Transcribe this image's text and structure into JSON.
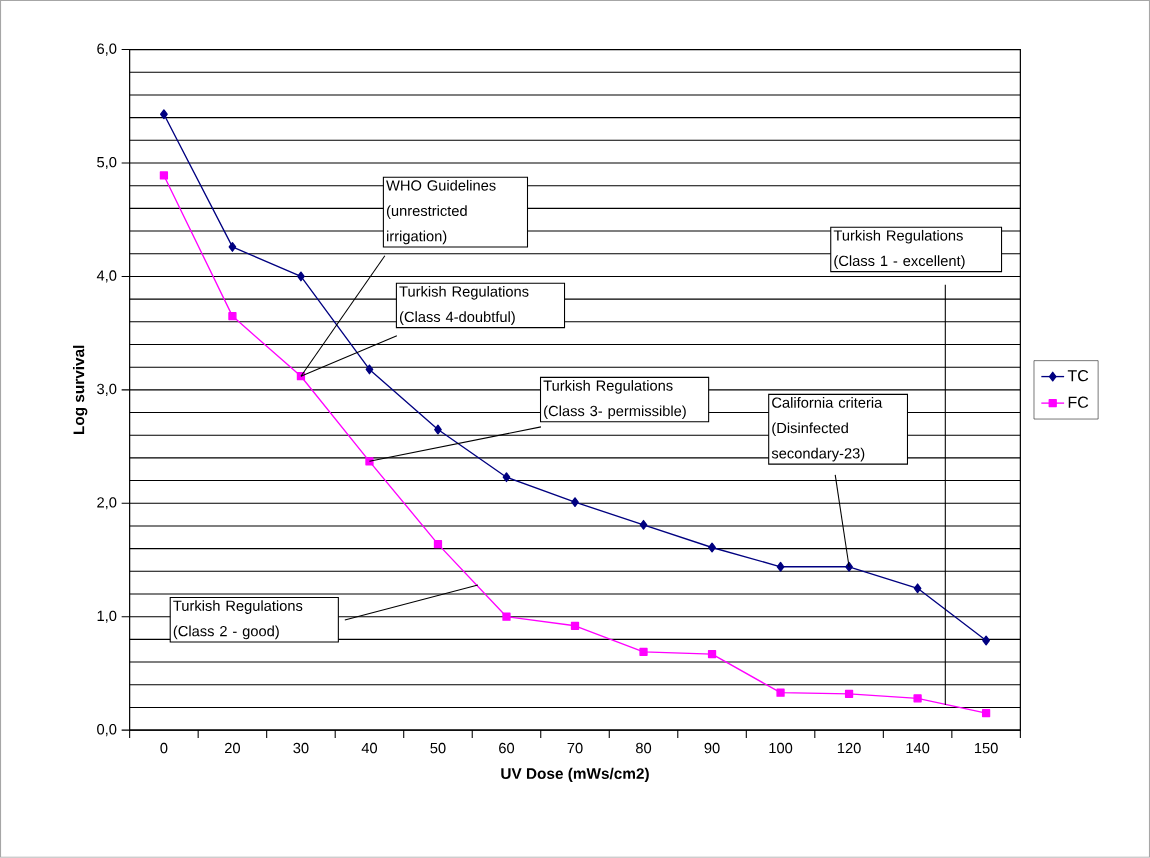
{
  "chart_data": {
    "type": "line",
    "xlabel": "UV Dose (mWs/cm2)",
    "ylabel": "Log survival",
    "categories": [
      "0",
      "20",
      "30",
      "40",
      "50",
      "60",
      "70",
      "80",
      "90",
      "100",
      "120",
      "140",
      "150"
    ],
    "series": [
      {
        "name": "TC",
        "color": "#000080",
        "marker": "diamond",
        "values": [
          5.43,
          4.26,
          4.0,
          3.18,
          2.65,
          2.23,
          2.01,
          1.81,
          1.61,
          1.44,
          1.44,
          1.25,
          0.79
        ]
      },
      {
        "name": "FC",
        "color": "#ff00ff",
        "marker": "square",
        "values": [
          4.89,
          3.65,
          3.12,
          2.37,
          1.64,
          1.0,
          0.92,
          0.69,
          0.67,
          0.33,
          0.32,
          0.28,
          0.15
        ]
      }
    ],
    "ylim": [
      0,
      6
    ],
    "yticks": [
      {
        "value": 0,
        "label": "0,0"
      },
      {
        "value": 1,
        "label": "1,0"
      },
      {
        "value": 2,
        "label": "2,0"
      },
      {
        "value": 3,
        "label": "3,0"
      },
      {
        "value": 4,
        "label": "4,0"
      },
      {
        "value": 5,
        "label": "5,0"
      },
      {
        "value": 6,
        "label": "6,0"
      }
    ],
    "grid": "y",
    "legend": "right",
    "line_style": "solid",
    "annotations": [
      {
        "text": "WHO Guidelines (unrestricted irrigation)",
        "x": "30",
        "y": 3.12
      },
      {
        "text": "Turkish Regulations (Class 4-doubtful)",
        "x": "30",
        "y": 3.12
      },
      {
        "text": "Turkish Regulations (Class 3- permissible)",
        "x": "40",
        "y": 2.37
      },
      "Turkish Regulations (Class 2 - good)",
      {
        "text": "California criteria (Disinfected secondary-23)",
        "x": "120",
        "y": 1.44
      },
      "Turkish Regulations (Class 1 - excellent)"
    ]
  }
}
